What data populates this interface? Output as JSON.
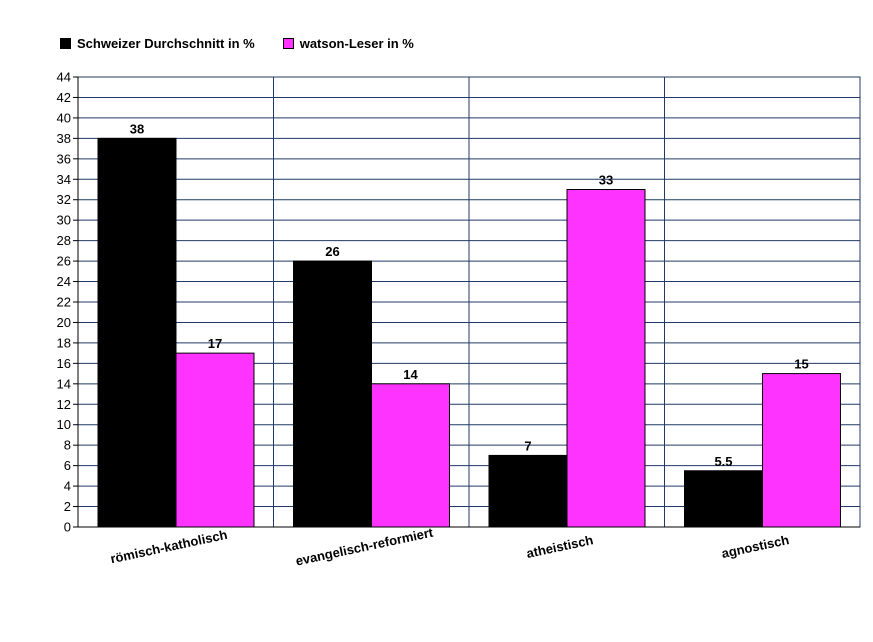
{
  "chart_data": {
    "type": "bar",
    "categories": [
      "römisch-katholisch",
      "evangelisch-reformiert",
      "atheistisch",
      "agnostisch"
    ],
    "series": [
      {
        "name": "Schweizer Durchschnitt in %",
        "color": "#000000",
        "values": [
          38,
          26,
          7,
          5.5
        ],
        "labels": [
          "38",
          "26",
          "7",
          "5.5"
        ]
      },
      {
        "name": "watson-Leser in %",
        "color": "#ff33ff",
        "values": [
          17,
          14,
          33,
          15
        ],
        "labels": [
          "17",
          "14",
          "33",
          "15"
        ]
      }
    ],
    "ylim": [
      0,
      44
    ],
    "ytick_step": 2,
    "grid": true,
    "legend_position": "top-left",
    "title": "",
    "xlabel": "",
    "ylabel": ""
  }
}
